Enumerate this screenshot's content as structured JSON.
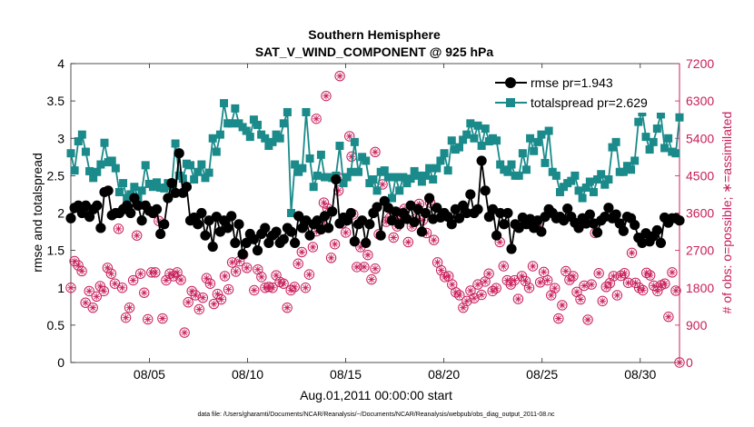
{
  "chart_data": {
    "type": "line",
    "title": "Southern Hemisphere",
    "subtitle": "SAT_V_WIND_COMPONENT @ 925 hPa",
    "xlabel": "Aug.01,2011 00:00:00 start",
    "ylabel": "rmse and totalspread",
    "y2label": "# of obs: o=possible; ∗=assimilated",
    "footer": "data file: /Users/gharamti/Documents/NCAR/Reanalysis/~/Documents/NCAR/Reanalysis/webpub/obs_diag_output_2011-08.nc",
    "xlim": [
      1.0,
      32.0
    ],
    "ylim": [
      0,
      4
    ],
    "y2lim": [
      0,
      7200
    ],
    "xticks": [
      5,
      10,
      15,
      20,
      25,
      30
    ],
    "xticklabels": [
      "08/05",
      "08/10",
      "08/15",
      "08/20",
      "08/25",
      "08/30"
    ],
    "yticklabels": [
      "0",
      "0.5",
      "1",
      "1.5",
      "2",
      "2.5",
      "3",
      "3.5",
      "4"
    ],
    "y2ticklabels": [
      "0",
      "900",
      "1800",
      "2700",
      "3600",
      "4500",
      "5400",
      "6300",
      "7200"
    ],
    "colors": {
      "rmse": "#000000",
      "spread": "#1a8a8a",
      "obs": "#c81e5a"
    },
    "series": [
      {
        "name": "rmse",
        "legend": "rmse pr=1.943",
        "values": [
          1.93,
          2.07,
          2.1,
          2.0,
          2.1,
          1.95,
          2.05,
          2.1,
          1.8,
          2.28,
          2.3,
          1.97,
          2.0,
          2.0,
          2.05,
          2.1,
          2.0,
          2.2,
          2.1,
          1.9,
          2.1,
          2.03,
          2.0,
          2.05,
          1.72,
          1.85,
          2.2,
          2.4,
          2.27,
          2.8,
          2.27,
          2.35,
          1.9,
          1.94,
          1.85,
          2.0,
          1.7,
          1.9,
          1.55,
          1.95,
          1.75,
          1.9,
          1.8,
          1.96,
          1.6,
          1.85,
          1.45,
          1.6,
          1.72,
          1.65,
          1.5,
          1.72,
          1.8,
          1.6,
          1.7,
          1.75,
          1.6,
          1.65,
          1.8,
          1.75,
          1.6,
          1.96,
          1.8,
          1.9,
          1.7,
          1.85,
          1.9,
          1.78,
          1.96,
          1.8,
          2.02,
          2.45,
          1.86,
          1.94,
          1.9,
          2.0,
          1.62,
          1.85,
          1.9,
          1.6,
          1.85,
          2.0,
          2.08,
          1.7,
          2.16,
          2.07,
          1.9,
          2.02,
          1.85,
          2.0,
          1.92,
          2.1,
          1.88,
          2.05,
          1.75,
          2.0,
          2.2,
          1.92,
          2.07,
          1.94,
          2.0,
          1.95,
          1.85,
          2.05,
          1.93,
          2.1,
          2.0,
          2.25,
          2.0,
          2.05,
          2.7,
          2.3,
          1.95,
          2.05,
          1.7,
          2.0,
          1.85,
          2.0,
          1.52,
          1.85,
          1.8,
          1.94,
          1.85,
          1.92,
          1.8,
          1.9,
          1.75,
          1.95,
          2.05,
          2.0,
          1.93,
          1.95,
          1.9,
          2.06,
          1.95,
          1.87,
          1.8,
          1.93,
          1.86,
          1.98,
          1.86,
          1.74,
          1.9,
          1.95,
          2.07,
          1.93,
          1.98,
          1.86,
          1.76,
          1.95,
          1.93,
          1.84,
          1.67,
          1.6,
          1.73,
          1.62,
          1.69,
          1.77,
          1.6,
          1.94,
          1.87,
          1.93,
          1.93,
          1.9
        ]
      },
      {
        "name": "totalspread",
        "legend": "totalspread pr=2.629",
        "values": [
          2.8,
          2.57,
          2.96,
          3.05,
          2.82,
          2.56,
          2.47,
          2.55,
          2.65,
          2.94,
          2.68,
          2.7,
          2.6,
          2.28,
          2.4,
          2.2,
          2.25,
          2.35,
          2.2,
          2.3,
          2.64,
          2.39,
          2.35,
          2.41,
          2.34,
          2.33,
          2.4,
          2.36,
          2.93,
          2.5,
          2.46,
          2.66,
          2.64,
          2.45,
          2.55,
          2.65,
          2.47,
          2.54,
          3.0,
          2.82,
          3.05,
          3.47,
          3.2,
          3.2,
          3.4,
          3.2,
          3.15,
          3.1,
          3.02,
          3.25,
          3.18,
          3.05,
          3.0,
          2.9,
          2.95,
          3.05,
          3.0,
          3.2,
          3.35,
          2.0,
          2.65,
          2.55,
          2.6,
          3.35,
          2.73,
          2.35,
          2.5,
          2.78,
          2.48,
          2.48,
          2.47,
          2.5,
          2.9,
          2.4,
          2.48,
          2.55,
          2.95,
          2.55,
          2.75,
          2.7,
          2.4,
          2.45,
          2.3,
          2.55,
          2.57,
          2.48,
          2.2,
          2.48,
          2.3,
          2.48,
          2.4,
          2.46,
          2.56,
          2.5,
          2.42,
          2.5,
          2.6,
          2.45,
          2.6,
          2.7,
          2.8,
          2.57,
          2.97,
          2.85,
          2.88,
          2.98,
          3.05,
          3.2,
          3.0,
          3.17,
          2.9,
          3.13,
          2.96,
          3.0,
          2.97,
          2.65,
          2.58,
          2.55,
          2.65,
          2.5,
          2.5,
          2.8,
          2.58,
          3.0,
          2.83,
          2.95,
          3.05,
          2.67,
          3.1,
          2.55,
          2.5,
          2.28,
          2.35,
          2.4,
          2.43,
          2.5,
          2.3,
          2.2,
          2.34,
          2.42,
          2.28,
          2.45,
          2.52,
          2.38,
          2.45,
          2.88,
          2.95,
          2.55,
          2.55,
          2.63,
          2.58,
          2.7,
          3.22,
          3.35,
          3.02,
          2.85,
          2.95,
          3.13,
          3.32,
          2.87,
          3.0,
          2.82,
          2.8,
          3.28
        ]
      },
      {
        "name": "obs_possible",
        "axis": "right",
        "values": [
          1800,
          2440,
          2340,
          2200,
          1440,
          1720,
          1320,
          1590,
          1840,
          1720,
          2280,
          2140,
          1900,
          3220,
          1800,
          1080,
          1320,
          1980,
          3060,
          2140,
          1680,
          1040,
          2170,
          2170,
          3410,
          1060,
          1980,
          2140,
          2080,
          2170,
          1990,
          720,
          1450,
          1720,
          1620,
          1280,
          1560,
          2030,
          1900,
          1410,
          1650,
          1520,
          2080,
          1760,
          2410,
          2190,
          2440,
          2600,
          2280,
          3000,
          1740,
          2240,
          2060,
          1800,
          1820,
          1800,
          2100,
          1940,
          1900,
          1320,
          1740,
          1820,
          2380,
          2660,
          1800,
          2120,
          2780,
          3160,
          3380,
          3850,
          3710,
          2520,
          2850,
          4140,
          3350,
          3130,
          5450,
          3570,
          2300,
          2780,
          2300,
          2590,
          2000,
          2260,
          3090,
          4290,
          3390,
          3480,
          3010,
          3280,
          3470,
          3700,
          2900,
          3280,
          3460,
          3820,
          3430,
          3120,
          3850,
          2950,
          2410,
          2220,
          2060,
          2080,
          1880,
          1690,
          1620,
          1320,
          1480,
          1730,
          1550,
          1880,
          1630,
          1950,
          2140,
          1720,
          1790,
          2900,
          2320,
          1980,
          1880,
          1980,
          1530,
          2080,
          1960,
          1800,
          2320,
          3330,
          1930,
          2180,
          1980,
          1620,
          1790,
          1060,
          1380,
          2200,
          1990,
          2080,
          1700,
          1520,
          1850,
          1030,
          1880,
          3120,
          2150,
          1480,
          1820,
          1910,
          2080,
          1620,
          2090,
          2150,
          1920,
          2640,
          1920,
          1800,
          1740,
          2160,
          2100,
          1850,
          1720,
          1860,
          1900,
          1100,
          2170,
          1730,
          0
        ]
      }
    ],
    "obs_extra": [
      {
        "x": 14.7,
        "y2": 6900
      },
      {
        "x": 14.0,
        "y2": 6420
      },
      {
        "x": 13.5,
        "y2": 5870
      },
      {
        "x": 16.5,
        "y2": 5070
      },
      {
        "x": 14.6,
        "y2": 4460
      },
      {
        "x": 15.3,
        "y2": 4960
      }
    ]
  },
  "legend_entries": [
    "rmse pr=1.943",
    "totalspread pr=2.629"
  ]
}
